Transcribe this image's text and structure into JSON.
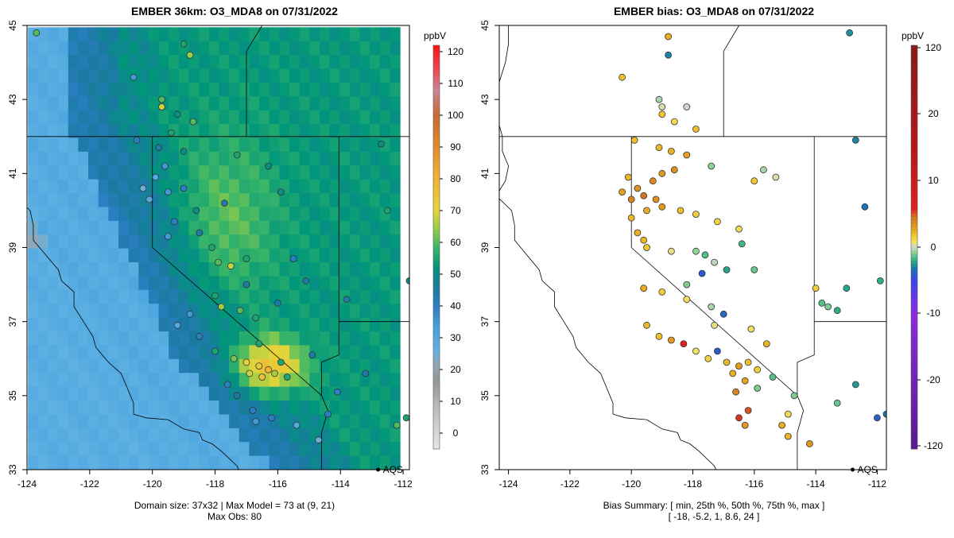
{
  "chart_data": [
    {
      "type": "heatmap",
      "title": "EMBER 36km: O3_MDA8 on 07/31/2022",
      "xlim": [
        -124,
        -111.8
      ],
      "ylim": [
        33,
        45
      ],
      "x_ticks": [
        -124,
        -122,
        -120,
        -118,
        -116,
        -114,
        -112
      ],
      "y_ticks": [
        33,
        35,
        37,
        39,
        41,
        43,
        45
      ],
      "domain_size": "37x32",
      "max_model": 73,
      "max_model_cell": "(9, 21)",
      "max_obs": 80,
      "footer_line1": "Domain size: 37x32 | Max Model = 73 at (9, 21)",
      "footer_line2": "Max Obs: 80",
      "colorbar": {
        "label": "ppbV",
        "min": -5,
        "max": 122,
        "ticks": [
          0,
          10,
          20,
          30,
          40,
          50,
          60,
          70,
          80,
          90,
          100,
          110,
          120
        ]
      },
      "label_site": {
        "name": "AQS",
        "lon": -112.8,
        "lat": 33.0
      },
      "observations": [
        {
          "lon": -123.7,
          "lat": 44.8,
          "v": 60
        },
        {
          "lon": -119.0,
          "lat": 44.5,
          "v": 55
        },
        {
          "lon": -118.8,
          "lat": 44.2,
          "v": 65
        },
        {
          "lon": -120.6,
          "lat": 43.6,
          "v": 35
        },
        {
          "lon": -119.7,
          "lat": 43.0,
          "v": 60
        },
        {
          "lon": -119.7,
          "lat": 42.8,
          "v": 68
        },
        {
          "lon": -119.2,
          "lat": 42.6,
          "v": 50
        },
        {
          "lon": -118.7,
          "lat": 42.4,
          "v": 60
        },
        {
          "lon": -119.4,
          "lat": 42.1,
          "v": 55
        },
        {
          "lon": -120.5,
          "lat": 41.9,
          "v": 40
        },
        {
          "lon": -119.8,
          "lat": 41.7,
          "v": 45
        },
        {
          "lon": -119.0,
          "lat": 41.6,
          "v": 50
        },
        {
          "lon": -117.3,
          "lat": 41.5,
          "v": 55
        },
        {
          "lon": -116.3,
          "lat": 41.2,
          "v": 50
        },
        {
          "lon": -119.6,
          "lat": 41.2,
          "v": 35
        },
        {
          "lon": -119.9,
          "lat": 40.9,
          "v": 30
        },
        {
          "lon": -120.3,
          "lat": 40.6,
          "v": 25
        },
        {
          "lon": -120.1,
          "lat": 40.3,
          "v": 30
        },
        {
          "lon": -119.5,
          "lat": 40.5,
          "v": 35
        },
        {
          "lon": -119.0,
          "lat": 40.6,
          "v": 40
        },
        {
          "lon": -118.6,
          "lat": 40.0,
          "v": 50
        },
        {
          "lon": -119.3,
          "lat": 39.7,
          "v": 40
        },
        {
          "lon": -119.5,
          "lat": 39.3,
          "v": 35
        },
        {
          "lon": -118.5,
          "lat": 39.4,
          "v": 45
        },
        {
          "lon": -118.1,
          "lat": 39.0,
          "v": 55
        },
        {
          "lon": -117.9,
          "lat": 38.6,
          "v": 60
        },
        {
          "lon": -117.5,
          "lat": 38.5,
          "v": 68
        },
        {
          "lon": -117.0,
          "lat": 38.7,
          "v": 55
        },
        {
          "lon": -117.0,
          "lat": 38.0,
          "v": 45
        },
        {
          "lon": -118.0,
          "lat": 37.7,
          "v": 55
        },
        {
          "lon": -117.8,
          "lat": 37.4,
          "v": 65
        },
        {
          "lon": -117.2,
          "lat": 37.3,
          "v": 60
        },
        {
          "lon": -116.7,
          "lat": 37.1,
          "v": 55
        },
        {
          "lon": -118.8,
          "lat": 37.2,
          "v": 35
        },
        {
          "lon": -119.2,
          "lat": 36.9,
          "v": 30
        },
        {
          "lon": -118.5,
          "lat": 36.6,
          "v": 40
        },
        {
          "lon": -118.0,
          "lat": 36.2,
          "v": 55
        },
        {
          "lon": -117.4,
          "lat": 36.0,
          "v": 62
        },
        {
          "lon": -117.0,
          "lat": 35.9,
          "v": 70
        },
        {
          "lon": -116.6,
          "lat": 35.8,
          "v": 73
        },
        {
          "lon": -116.3,
          "lat": 35.7,
          "v": 80
        },
        {
          "lon": -116.9,
          "lat": 35.6,
          "v": 68
        },
        {
          "lon": -116.5,
          "lat": 35.5,
          "v": 75
        },
        {
          "lon": -116.1,
          "lat": 35.6,
          "v": 65
        },
        {
          "lon": -115.7,
          "lat": 35.5,
          "v": 55
        },
        {
          "lon": -115.9,
          "lat": 35.9,
          "v": 55
        },
        {
          "lon": -116.6,
          "lat": 36.4,
          "v": 55
        },
        {
          "lon": -117.6,
          "lat": 35.3,
          "v": 40
        },
        {
          "lon": -117.3,
          "lat": 35.0,
          "v": 45
        },
        {
          "lon": -116.8,
          "lat": 34.6,
          "v": 40
        },
        {
          "lon": -116.7,
          "lat": 34.3,
          "v": 35
        },
        {
          "lon": -116.2,
          "lat": 34.4,
          "v": 40
        },
        {
          "lon": -115.4,
          "lat": 34.2,
          "v": 30
        },
        {
          "lon": -114.7,
          "lat": 33.8,
          "v": 25
        },
        {
          "lon": -114.4,
          "lat": 34.5,
          "v": 40
        },
        {
          "lon": -114.1,
          "lat": 35.1,
          "v": 40
        },
        {
          "lon": -113.2,
          "lat": 35.6,
          "v": 45
        },
        {
          "lon": -114.9,
          "lat": 36.1,
          "v": 45
        },
        {
          "lon": -113.8,
          "lat": 37.6,
          "v": 45
        },
        {
          "lon": -115.1,
          "lat": 38.1,
          "v": 45
        },
        {
          "lon": -112.5,
          "lat": 40.0,
          "v": 55
        },
        {
          "lon": -112.7,
          "lat": 41.8,
          "v": 50
        },
        {
          "lon": -111.8,
          "lat": 38.1,
          "v": 50
        },
        {
          "lon": -111.9,
          "lat": 34.4,
          "v": 55
        },
        {
          "lon": -112.2,
          "lat": 34.2,
          "v": 60
        },
        {
          "lon": -116.0,
          "lat": 37.5,
          "v": 45
        },
        {
          "lon": -115.5,
          "lat": 38.7,
          "v": 40
        },
        {
          "lon": -115.9,
          "lat": 40.5,
          "v": 50
        },
        {
          "lon": -117.7,
          "lat": 40.2,
          "v": 45
        }
      ]
    },
    {
      "type": "scatter",
      "title": "EMBER bias: O3_MDA8 on 07/31/2022",
      "xlim": [
        -124.3,
        -111.7
      ],
      "ylim": [
        33,
        45
      ],
      "x_ticks": [
        -124,
        -122,
        -120,
        -118,
        -116,
        -114,
        -112
      ],
      "y_ticks": [
        33,
        35,
        37,
        39,
        41,
        43,
        45
      ],
      "bias_summary": {
        "min": -18,
        "p25": -5.2,
        "p50": 1,
        "p75": 8.6,
        "max": 24
      },
      "footer_line1": "Bias Summary: [ min, 25th %, 50th %, 75th %, max ]",
      "footer_line2": "[ -18,   -5.2,   1,   8.6,   24 ]",
      "colorbar": {
        "label": "ppbV",
        "min": -122,
        "max": 122,
        "ticks": [
          -120,
          -20,
          -10,
          0,
          10,
          20,
          120
        ]
      },
      "label_site": {
        "name": "AQS",
        "lon": -112.8,
        "lat": 33.0
      },
      "observations": [
        {
          "lon": -118.8,
          "lat": 44.7,
          "v": 10
        },
        {
          "lon": -118.8,
          "lat": 44.2,
          "v": -12
        },
        {
          "lon": -120.3,
          "lat": 43.6,
          "v": 8
        },
        {
          "lon": -119.1,
          "lat": 43.0,
          "v": -2
        },
        {
          "lon": -119.0,
          "lat": 42.8,
          "v": 1
        },
        {
          "lon": -118.2,
          "lat": 42.8,
          "v": 0
        },
        {
          "lon": -119.0,
          "lat": 42.6,
          "v": 7
        },
        {
          "lon": -118.6,
          "lat": 42.4,
          "v": 4
        },
        {
          "lon": -117.9,
          "lat": 42.2,
          "v": 8
        },
        {
          "lon": -119.9,
          "lat": 41.9,
          "v": 8
        },
        {
          "lon": -119.1,
          "lat": 41.7,
          "v": 9
        },
        {
          "lon": -118.7,
          "lat": 41.6,
          "v": 10
        },
        {
          "lon": -118.2,
          "lat": 41.5,
          "v": 11
        },
        {
          "lon": -117.4,
          "lat": 41.2,
          "v": -3
        },
        {
          "lon": -118.6,
          "lat": 41.1,
          "v": 14
        },
        {
          "lon": -119.0,
          "lat": 41.0,
          "v": 12
        },
        {
          "lon": -120.1,
          "lat": 40.9,
          "v": 9
        },
        {
          "lon": -119.3,
          "lat": 40.8,
          "v": 15
        },
        {
          "lon": -119.8,
          "lat": 40.6,
          "v": 13
        },
        {
          "lon": -120.3,
          "lat": 40.5,
          "v": 11
        },
        {
          "lon": -120.0,
          "lat": 40.3,
          "v": 16
        },
        {
          "lon": -119.6,
          "lat": 40.4,
          "v": 18
        },
        {
          "lon": -119.2,
          "lat": 40.3,
          "v": 14
        },
        {
          "lon": -119.0,
          "lat": 40.1,
          "v": 12
        },
        {
          "lon": -119.5,
          "lat": 40.0,
          "v": 10
        },
        {
          "lon": -120.0,
          "lat": 39.8,
          "v": 9
        },
        {
          "lon": -118.4,
          "lat": 40.0,
          "v": 8
        },
        {
          "lon": -117.9,
          "lat": 39.9,
          "v": 6
        },
        {
          "lon": -117.2,
          "lat": 39.7,
          "v": 5
        },
        {
          "lon": -116.5,
          "lat": 39.5,
          "v": 4
        },
        {
          "lon": -119.8,
          "lat": 39.4,
          "v": 10
        },
        {
          "lon": -119.6,
          "lat": 39.2,
          "v": 9
        },
        {
          "lon": -119.5,
          "lat": 39.0,
          "v": 7
        },
        {
          "lon": -118.7,
          "lat": 38.9,
          "v": 2
        },
        {
          "lon": -117.9,
          "lat": 38.9,
          "v": -3
        },
        {
          "lon": -117.6,
          "lat": 38.8,
          "v": -6
        },
        {
          "lon": -117.3,
          "lat": 38.6,
          "v": -1
        },
        {
          "lon": -116.9,
          "lat": 38.4,
          "v": -9
        },
        {
          "lon": -117.7,
          "lat": 38.3,
          "v": -18
        },
        {
          "lon": -118.2,
          "lat": 38.0,
          "v": -4
        },
        {
          "lon": -116.4,
          "lat": 39.1,
          "v": -7
        },
        {
          "lon": -116.0,
          "lat": 38.4,
          "v": -5
        },
        {
          "lon": -119.6,
          "lat": 37.9,
          "v": 10
        },
        {
          "lon": -119.0,
          "lat": 37.8,
          "v": 6
        },
        {
          "lon": -118.2,
          "lat": 37.6,
          "v": 3
        },
        {
          "lon": -117.4,
          "lat": 37.4,
          "v": -2
        },
        {
          "lon": -117.0,
          "lat": 37.2,
          "v": -15
        },
        {
          "lon": -117.3,
          "lat": 36.9,
          "v": 2
        },
        {
          "lon": -119.5,
          "lat": 36.9,
          "v": 9
        },
        {
          "lon": -119.1,
          "lat": 36.6,
          "v": 8
        },
        {
          "lon": -118.7,
          "lat": 36.5,
          "v": 12
        },
        {
          "lon": -118.3,
          "lat": 36.4,
          "v": 24
        },
        {
          "lon": -117.9,
          "lat": 36.2,
          "v": 3
        },
        {
          "lon": -117.5,
          "lat": 36.0,
          "v": 5
        },
        {
          "lon": -117.2,
          "lat": 36.2,
          "v": -17
        },
        {
          "lon": -116.9,
          "lat": 35.9,
          "v": 9
        },
        {
          "lon": -116.5,
          "lat": 35.8,
          "v": 12
        },
        {
          "lon": -116.2,
          "lat": 35.9,
          "v": 8
        },
        {
          "lon": -115.9,
          "lat": 35.7,
          "v": 6
        },
        {
          "lon": -116.7,
          "lat": 35.6,
          "v": 10
        },
        {
          "lon": -116.3,
          "lat": 35.4,
          "v": 11
        },
        {
          "lon": -115.6,
          "lat": 36.4,
          "v": 9
        },
        {
          "lon": -116.1,
          "lat": 36.8,
          "v": 3
        },
        {
          "lon": -115.9,
          "lat": 35.2,
          "v": -4
        },
        {
          "lon": -116.6,
          "lat": 35.1,
          "v": 16
        },
        {
          "lon": -116.2,
          "lat": 34.6,
          "v": 20
        },
        {
          "lon": -116.5,
          "lat": 34.4,
          "v": 22
        },
        {
          "lon": -116.3,
          "lat": 34.2,
          "v": 12
        },
        {
          "lon": -115.1,
          "lat": 34.2,
          "v": 10
        },
        {
          "lon": -114.9,
          "lat": 34.5,
          "v": 4
        },
        {
          "lon": -114.9,
          "lat": 33.9,
          "v": 9
        },
        {
          "lon": -114.2,
          "lat": 33.7,
          "v": 13
        },
        {
          "lon": -115.4,
          "lat": 35.5,
          "v": -6
        },
        {
          "lon": -114.7,
          "lat": 35.0,
          "v": -4
        },
        {
          "lon": -114.0,
          "lat": 37.9,
          "v": 6
        },
        {
          "lon": -113.8,
          "lat": 37.5,
          "v": -6
        },
        {
          "lon": -113.6,
          "lat": 37.4,
          "v": -4
        },
        {
          "lon": -113.3,
          "lat": 37.3,
          "v": -8
        },
        {
          "lon": -113.0,
          "lat": 37.9,
          "v": -9
        },
        {
          "lon": -113.3,
          "lat": 34.8,
          "v": -5
        },
        {
          "lon": -112.7,
          "lat": 35.3,
          "v": -10
        },
        {
          "lon": -112.4,
          "lat": 40.1,
          "v": -14
        },
        {
          "lon": -112.7,
          "lat": 41.9,
          "v": -12
        },
        {
          "lon": -112.9,
          "lat": 44.8,
          "v": -11
        },
        {
          "lon": -111.9,
          "lat": 38.1,
          "v": -8
        },
        {
          "lon": -112.0,
          "lat": 34.4,
          "v": -16
        },
        {
          "lon": -111.7,
          "lat": 34.5,
          "v": -13
        },
        {
          "lon": -115.3,
          "lat": 40.9,
          "v": 1
        },
        {
          "lon": -115.7,
          "lat": 41.1,
          "v": -2
        },
        {
          "lon": -116.0,
          "lat": 40.8,
          "v": 7
        }
      ]
    }
  ]
}
